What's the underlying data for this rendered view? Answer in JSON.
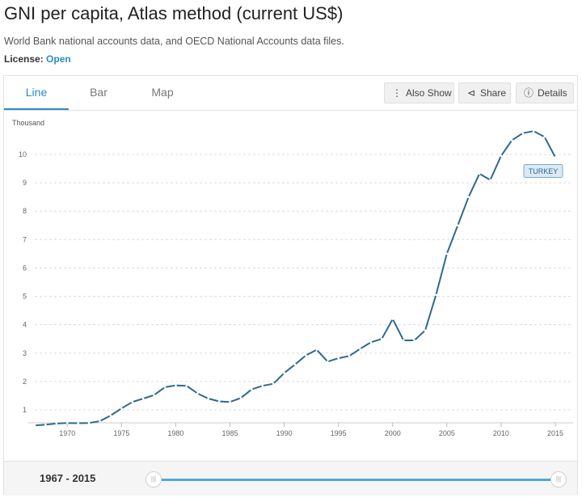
{
  "header": {
    "title": "GNI per capita, Atlas method (current US$)",
    "source": "World Bank national accounts data, and OECD National Accounts data files.",
    "license_label": "License:",
    "license_value": "Open"
  },
  "tabs": [
    {
      "label": "Line",
      "active": true
    },
    {
      "label": "Bar",
      "active": false
    },
    {
      "label": "Map",
      "active": false
    }
  ],
  "toolbar": {
    "also_show": "Also Show",
    "share": "Share",
    "details": "Details"
  },
  "footer": {
    "range_label": "1967 - 2015"
  },
  "colors": {
    "accent": "#2b8cc4",
    "series": "#2c6a8e",
    "slider": "#52a8d8"
  },
  "chart_data": {
    "type": "line",
    "ylabel": "Thousand",
    "x_ticks": [
      1970,
      1975,
      1980,
      1985,
      1990,
      1995,
      2000,
      2005,
      2010,
      2015
    ],
    "y_ticks": [
      1,
      2,
      3,
      4,
      5,
      6,
      7,
      8,
      9,
      10
    ],
    "xlim": [
      1967,
      2015
    ],
    "ylim": [
      0.6,
      11.2
    ],
    "grid": true,
    "series": [
      {
        "name": "TURKEY",
        "x": [
          1967,
          1968,
          1969,
          1970,
          1971,
          1972,
          1973,
          1974,
          1975,
          1976,
          1977,
          1978,
          1979,
          1980,
          1981,
          1982,
          1983,
          1984,
          1985,
          1986,
          1987,
          1988,
          1989,
          1990,
          1991,
          1992,
          1993,
          1994,
          1995,
          1996,
          1997,
          1998,
          1999,
          2000,
          2001,
          2002,
          2003,
          2004,
          2005,
          2006,
          2007,
          2008,
          2009,
          2010,
          2011,
          2012,
          2013,
          2014,
          2015
        ],
        "y": [
          0.45,
          0.48,
          0.52,
          0.54,
          0.53,
          0.54,
          0.6,
          0.8,
          1.05,
          1.28,
          1.4,
          1.52,
          1.8,
          1.86,
          1.85,
          1.58,
          1.4,
          1.3,
          1.28,
          1.42,
          1.72,
          1.85,
          1.92,
          2.3,
          2.6,
          2.92,
          3.12,
          2.7,
          2.82,
          2.9,
          3.15,
          3.38,
          3.5,
          4.2,
          3.45,
          3.45,
          3.8,
          5.05,
          6.5,
          7.5,
          8.5,
          9.32,
          9.1,
          9.95,
          10.5,
          10.75,
          10.82,
          10.62,
          9.9
        ]
      }
    ]
  }
}
